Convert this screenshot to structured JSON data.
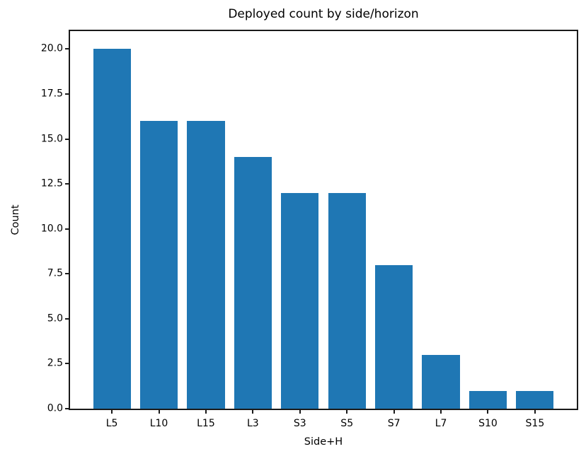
{
  "chart_data": {
    "type": "bar",
    "title": "Deployed count by side/horizon",
    "xlabel": "Side+H",
    "ylabel": "Count",
    "categories": [
      "L5",
      "L10",
      "L15",
      "L3",
      "S3",
      "S5",
      "S7",
      "L7",
      "S10",
      "S15"
    ],
    "values": [
      20,
      16,
      16,
      14,
      12,
      12,
      8,
      3,
      1,
      1
    ],
    "ylim": [
      0,
      21
    ],
    "yticks": [
      0.0,
      2.5,
      5.0,
      7.5,
      10.0,
      12.5,
      15.0,
      17.5,
      20.0
    ],
    "ytick_labels": [
      "0.0",
      "2.5",
      "5.0",
      "7.5",
      "10.0",
      "12.5",
      "15.0",
      "17.5",
      "20.0"
    ],
    "bar_color": "#1f77b4",
    "bar_width": 0.8,
    "x_margin": 0.05,
    "grid": false,
    "legend": "none"
  }
}
